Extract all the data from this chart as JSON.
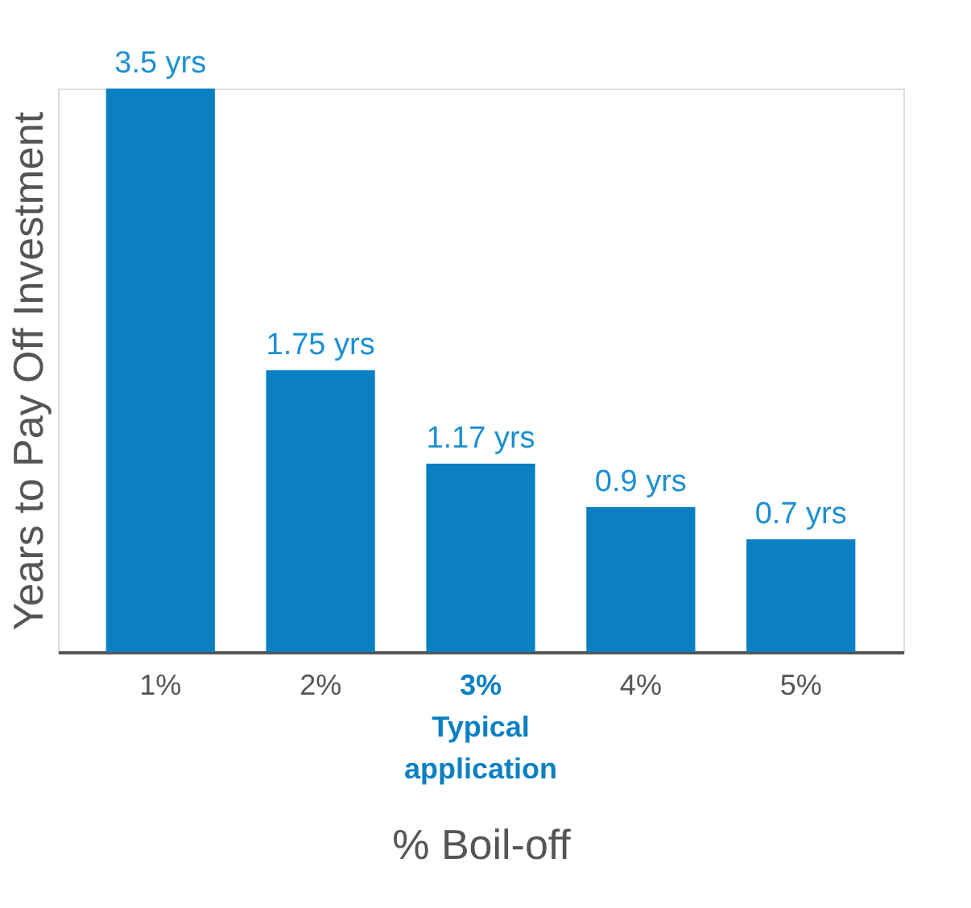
{
  "chart_data": {
    "type": "bar",
    "xlabel": "% Boil-off",
    "ylabel": "Years to Pay Off Investment",
    "categories": [
      "1%",
      "2%",
      "3% Typical application",
      "4%",
      "5%"
    ],
    "values": [
      3.5,
      1.75,
      1.17,
      0.9,
      0.7
    ],
    "value_labels": [
      "3.5 yrs",
      "1.75 yrs",
      "1.17 yrs",
      "0.9 yrs",
      "0.7 yrs"
    ],
    "color": "#0a7fc2",
    "grid": false
  }
}
